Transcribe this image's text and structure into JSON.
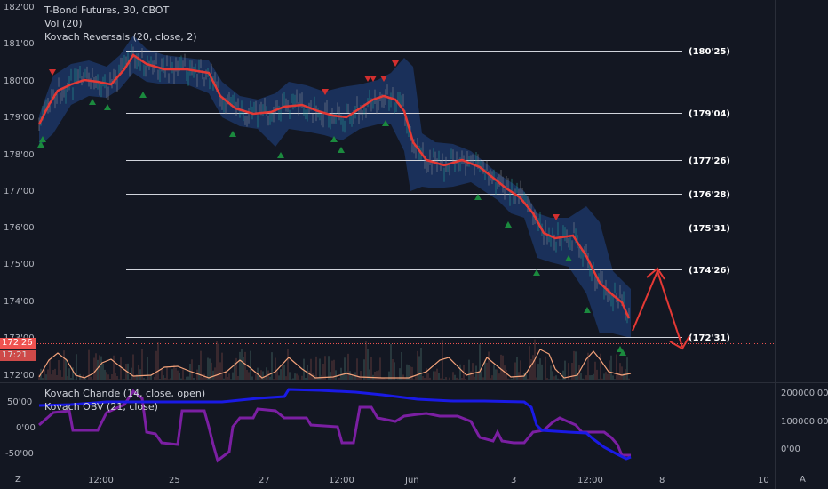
{
  "legend_main": {
    "title": "T-Bond Futures, 30, CBOT",
    "vol": "Vol (20)",
    "indicator": "Kovach Reversals (20, close, 2)"
  },
  "legend_sub": {
    "line1": "Kovach Chande (14, close, open)",
    "line2": "Kovach OBV (21, close)"
  },
  "price_axis": [
    "182'00",
    "181'00",
    "180'00",
    "179'00",
    "178'00",
    "177'00",
    "176'00",
    "175'00",
    "174'00",
    "173'00",
    "172'00"
  ],
  "sub_left_axis": [
    "50'00",
    "0'00",
    "-50'00"
  ],
  "sub_right_axis": [
    "200000'00",
    "100000'00",
    "0'00"
  ],
  "time_axis": [
    "12:00",
    "25",
    "27",
    "12:00",
    "Jun",
    "3",
    "12:00",
    "8",
    "10"
  ],
  "levels": [
    "(180'25)",
    "(179'04)",
    "(177'26)",
    "(176'28)",
    "(175'31)",
    "(174'26)",
    "(172'31)"
  ],
  "current_price": "172'26",
  "countdown": "17:21",
  "bottom": {
    "left_btn": "Z",
    "right_btn": "A"
  },
  "colors": {
    "background": "#131722",
    "ma_line": "#e53935",
    "band_fill": "#1e3a6e",
    "chande_line": "#7b1fa2",
    "obv_line": "#1a1ae6",
    "vol_osc": "#f4a27a",
    "up_arrow": "#1b8a3e",
    "down_arrow": "#d32f2f",
    "current_tag": "#ef5350"
  }
}
